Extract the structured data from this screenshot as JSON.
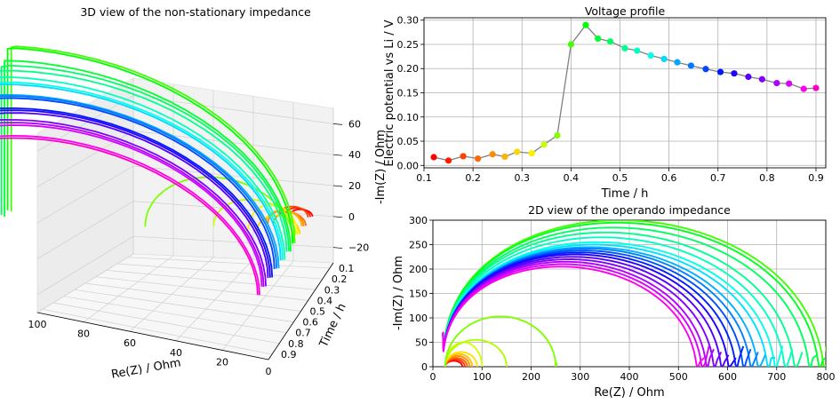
{
  "chart_data": [
    {
      "id": "panel-3d",
      "type": "line",
      "title": "3D view of the non-stationary impedance",
      "xlabel": "Re(Z) / Ohm",
      "ylabel": "Time / h",
      "zlabel": "-Im(Z) / Ohm",
      "x_ticks": [
        "100",
        "80",
        "60",
        "40",
        "20",
        "0"
      ],
      "y_ticks": [
        "0.1",
        "0.2",
        "0.3",
        "0.4",
        "0.5",
        "0.6",
        "0.7",
        "0.8",
        "0.9"
      ],
      "z_ticks": [
        "60",
        "40",
        "20",
        "0",
        "−20"
      ],
      "xlim": [
        0,
        100
      ],
      "ylim": [
        0.1,
        0.9
      ],
      "zlim": [
        -30,
        70
      ],
      "grid": true,
      "colormap": "hsv"
    },
    {
      "id": "panel-voltage",
      "type": "line",
      "title": "Voltage profile",
      "xlabel": "Time / h",
      "ylabel": "Electric potential vs Li / V",
      "xlim": [
        0.1,
        0.92
      ],
      "ylim": [
        -0.005,
        0.305
      ],
      "x_ticks": [
        "0.1",
        "0.2",
        "0.3",
        "0.4",
        "0.5",
        "0.6",
        "0.7",
        "0.8",
        "0.9"
      ],
      "y_ticks": [
        "0.00",
        "0.05",
        "0.10",
        "0.15",
        "0.20",
        "0.25",
        "0.30"
      ],
      "grid": true,
      "line_color": "#808080",
      "x": [
        0.12,
        0.15,
        0.18,
        0.21,
        0.24,
        0.265,
        0.29,
        0.32,
        0.345,
        0.372,
        0.4,
        0.43,
        0.455,
        0.48,
        0.51,
        0.535,
        0.563,
        0.59,
        0.617,
        0.645,
        0.675,
        0.705,
        0.733,
        0.762,
        0.79,
        0.82,
        0.845,
        0.875,
        0.9
      ],
      "values": [
        0.017,
        0.01,
        0.019,
        0.014,
        0.023,
        0.018,
        0.028,
        0.025,
        0.043,
        0.062,
        0.25,
        0.29,
        0.262,
        0.256,
        0.242,
        0.237,
        0.227,
        0.22,
        0.213,
        0.206,
        0.199,
        0.193,
        0.19,
        0.183,
        0.178,
        0.17,
        0.169,
        0.158,
        0.16
      ],
      "point_colors": [
        "#ff0000",
        "#ff1a00",
        "#ff4000",
        "#ff6a00",
        "#ff8c00",
        "#ffb000",
        "#ffd500",
        "#fff000",
        "#c8ff00",
        "#80ff00",
        "#40ff00",
        "#00ff00",
        "#00ff30",
        "#00ff60",
        "#00ff90",
        "#00ffc0",
        "#00ffee",
        "#00d8ff",
        "#00a8ff",
        "#0078ff",
        "#0048ff",
        "#0018ff",
        "#2000ff",
        "#5000ff",
        "#8000ff",
        "#b000ff",
        "#d800ff",
        "#ff00ee",
        "#ff00c8"
      ]
    },
    {
      "id": "panel-2d",
      "type": "line",
      "title": "2D view of the operando impedance",
      "xlabel": "Re(Z) / Ohm",
      "ylabel": "-Im(Z) / Ohm",
      "xlim": [
        0,
        800
      ],
      "ylim": [
        0,
        300
      ],
      "x_ticks": [
        "0",
        "100",
        "200",
        "300",
        "400",
        "500",
        "600",
        "700",
        "800"
      ],
      "y_ticks": [
        "0",
        "50",
        "100",
        "150",
        "200",
        "250",
        "300"
      ],
      "grid": true,
      "colormap": "hsv",
      "arcs": [
        {
          "color": "#ff0000",
          "x_start": 25,
          "x_end": 60,
          "peak": 12
        },
        {
          "color": "#ff3000",
          "x_start": 25,
          "x_end": 65,
          "peak": 15
        },
        {
          "color": "#ff6000",
          "x_start": 25,
          "x_end": 70,
          "peak": 18
        },
        {
          "color": "#ff9000",
          "x_start": 25,
          "x_end": 75,
          "peak": 22
        },
        {
          "color": "#ffc000",
          "x_start": 25,
          "x_end": 80,
          "peak": 26
        },
        {
          "color": "#ffe000",
          "x_start": 25,
          "x_end": 90,
          "peak": 30
        },
        {
          "color": "#d8ff00",
          "x_start": 25,
          "x_end": 100,
          "peak": 50
        },
        {
          "color": "#b0ff00",
          "x_start": 25,
          "x_end": 150,
          "peak": 55
        },
        {
          "color": "#80ff00",
          "x_start": 25,
          "x_end": 250,
          "peak": 103
        },
        {
          "color": "#40ff00",
          "x_start": 20,
          "x_end": 800,
          "peak": 300
        },
        {
          "color": "#00ff20",
          "x_start": 20,
          "x_end": 790,
          "peak": 295
        },
        {
          "color": "#00ff60",
          "x_start": 20,
          "x_end": 770,
          "peak": 285
        },
        {
          "color": "#00ff90",
          "x_start": 20,
          "x_end": 740,
          "peak": 275
        },
        {
          "color": "#00ffc0",
          "x_start": 20,
          "x_end": 720,
          "peak": 265
        },
        {
          "color": "#00ffe8",
          "x_start": 20,
          "x_end": 700,
          "peak": 255
        },
        {
          "color": "#00e0ff",
          "x_start": 20,
          "x_end": 685,
          "peak": 250
        },
        {
          "color": "#00b0ff",
          "x_start": 20,
          "x_end": 665,
          "peak": 245
        },
        {
          "color": "#0080ff",
          "x_start": 20,
          "x_end": 650,
          "peak": 242
        },
        {
          "color": "#0050ff",
          "x_start": 20,
          "x_end": 635,
          "peak": 238
        },
        {
          "color": "#0020ff",
          "x_start": 20,
          "x_end": 620,
          "peak": 234
        },
        {
          "color": "#2000ff",
          "x_start": 20,
          "x_end": 605,
          "peak": 230
        },
        {
          "color": "#5000ff",
          "x_start": 20,
          "x_end": 590,
          "peak": 225
        },
        {
          "color": "#8000ff",
          "x_start": 20,
          "x_end": 575,
          "peak": 220
        },
        {
          "color": "#b000ff",
          "x_start": 20,
          "x_end": 560,
          "peak": 215
        },
        {
          "color": "#d800ff",
          "x_start": 20,
          "x_end": 550,
          "peak": 210
        },
        {
          "color": "#ff00ee",
          "x_start": 20,
          "x_end": 540,
          "peak": 205
        }
      ]
    }
  ]
}
